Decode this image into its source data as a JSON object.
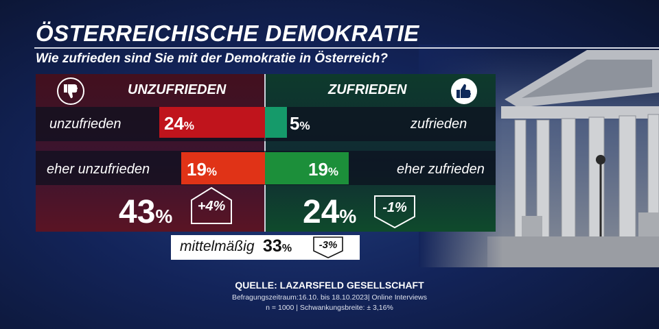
{
  "title": "ÖSTERREICHISCHE DEMOKRATIE",
  "subtitle": "Wie zufrieden sind Sie mit der Demokratie in Österreich?",
  "left_header": "UNZUFRIEDEN",
  "right_header": "ZUFRIEDEN",
  "colors": {
    "red": "#c0141c",
    "red_light": "#e03317",
    "green_dark": "#159a6a",
    "green": "#1c8f3a"
  },
  "chart_data": {
    "type": "bar",
    "unit": "%",
    "groups": [
      {
        "name": "UNZUFRIEDEN",
        "bars": [
          {
            "label": "unzufrieden",
            "value": 24
          },
          {
            "label": "eher unzufrieden",
            "value": 19
          }
        ],
        "total": 43,
        "change": "+4%"
      },
      {
        "name": "ZUFRIEDEN",
        "bars": [
          {
            "label": "zufrieden",
            "value": 5
          },
          {
            "label": "eher zufrieden",
            "value": 19
          }
        ],
        "total": 24,
        "change": "-1%"
      }
    ],
    "middle": {
      "label": "mittelmäßig",
      "value": 33,
      "change": "-3%"
    }
  },
  "labels": {
    "unzufrieden": "unzufrieden",
    "eher_unzufrieden": "eher unzufrieden",
    "zufrieden": "zufrieden",
    "eher_zufrieden": "eher zufrieden",
    "mittel": "mittelmäßig",
    "pct_sign": "%"
  },
  "values": {
    "unzufrieden": "24",
    "eher_unzufrieden": "19",
    "total_left": "43",
    "change_left": "+4%",
    "zufrieden": "5",
    "eher_zufrieden": "19",
    "total_right": "24",
    "change_right": "-1%",
    "mittel": "33",
    "change_mittel": "-3%"
  },
  "source": {
    "line1": "QUELLE:  LAZARSFELD GESELLSCHAFT",
    "line2": "Befragungszeitraum:16.10. bis 18.10.2023| Online Interviews",
    "line3": "n = 1000 |  Schwankungsbreite: ± 3,16%"
  },
  "icons": {
    "left": "thumbs-down-icon",
    "right": "thumbs-up-icon",
    "photo": "parliament-building-image"
  }
}
